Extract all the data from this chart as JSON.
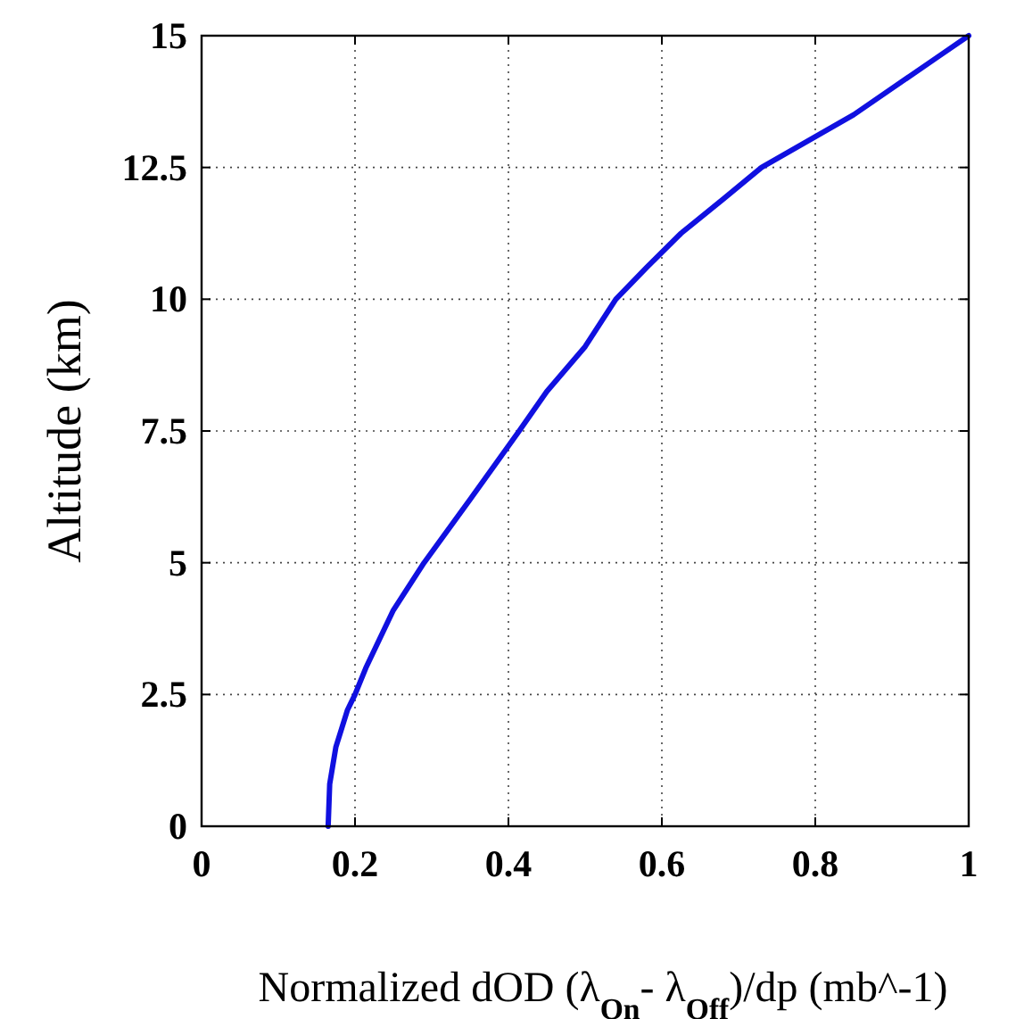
{
  "chart_data": {
    "type": "line",
    "xlabel": "Normalized dOD (λ$_{On}$- λ$_{Off}$)/dp (mb^-1)",
    "ylabel": "Altitude (km)",
    "series": [
      {
        "color": "#1010e0",
        "x": [
          0.165,
          0.167,
          0.175,
          0.19,
          0.2,
          0.214,
          0.25,
          0.29,
          0.35,
          0.414,
          0.45,
          0.5,
          0.54,
          0.58,
          0.625,
          0.68,
          0.73,
          0.79,
          0.85,
          0.92,
          0.96,
          1.0
        ],
        "values": [
          0,
          0.8,
          1.5,
          2.2,
          2.5,
          3,
          4.1,
          5,
          6.2,
          7.5,
          8.25,
          9.1,
          10,
          10.6,
          11.25,
          11.9,
          12.5,
          13,
          13.5,
          14.2,
          14.6,
          15
        ]
      }
    ],
    "xlim": [
      0,
      1
    ],
    "ylim": [
      0,
      15
    ],
    "xticks": [
      0,
      0.2,
      0.4,
      0.6,
      0.8,
      1
    ],
    "yticks": [
      0,
      2.5,
      5,
      7.5,
      10,
      12.5,
      15
    ],
    "grid": true,
    "line_style": "solid",
    "marker": "none"
  }
}
